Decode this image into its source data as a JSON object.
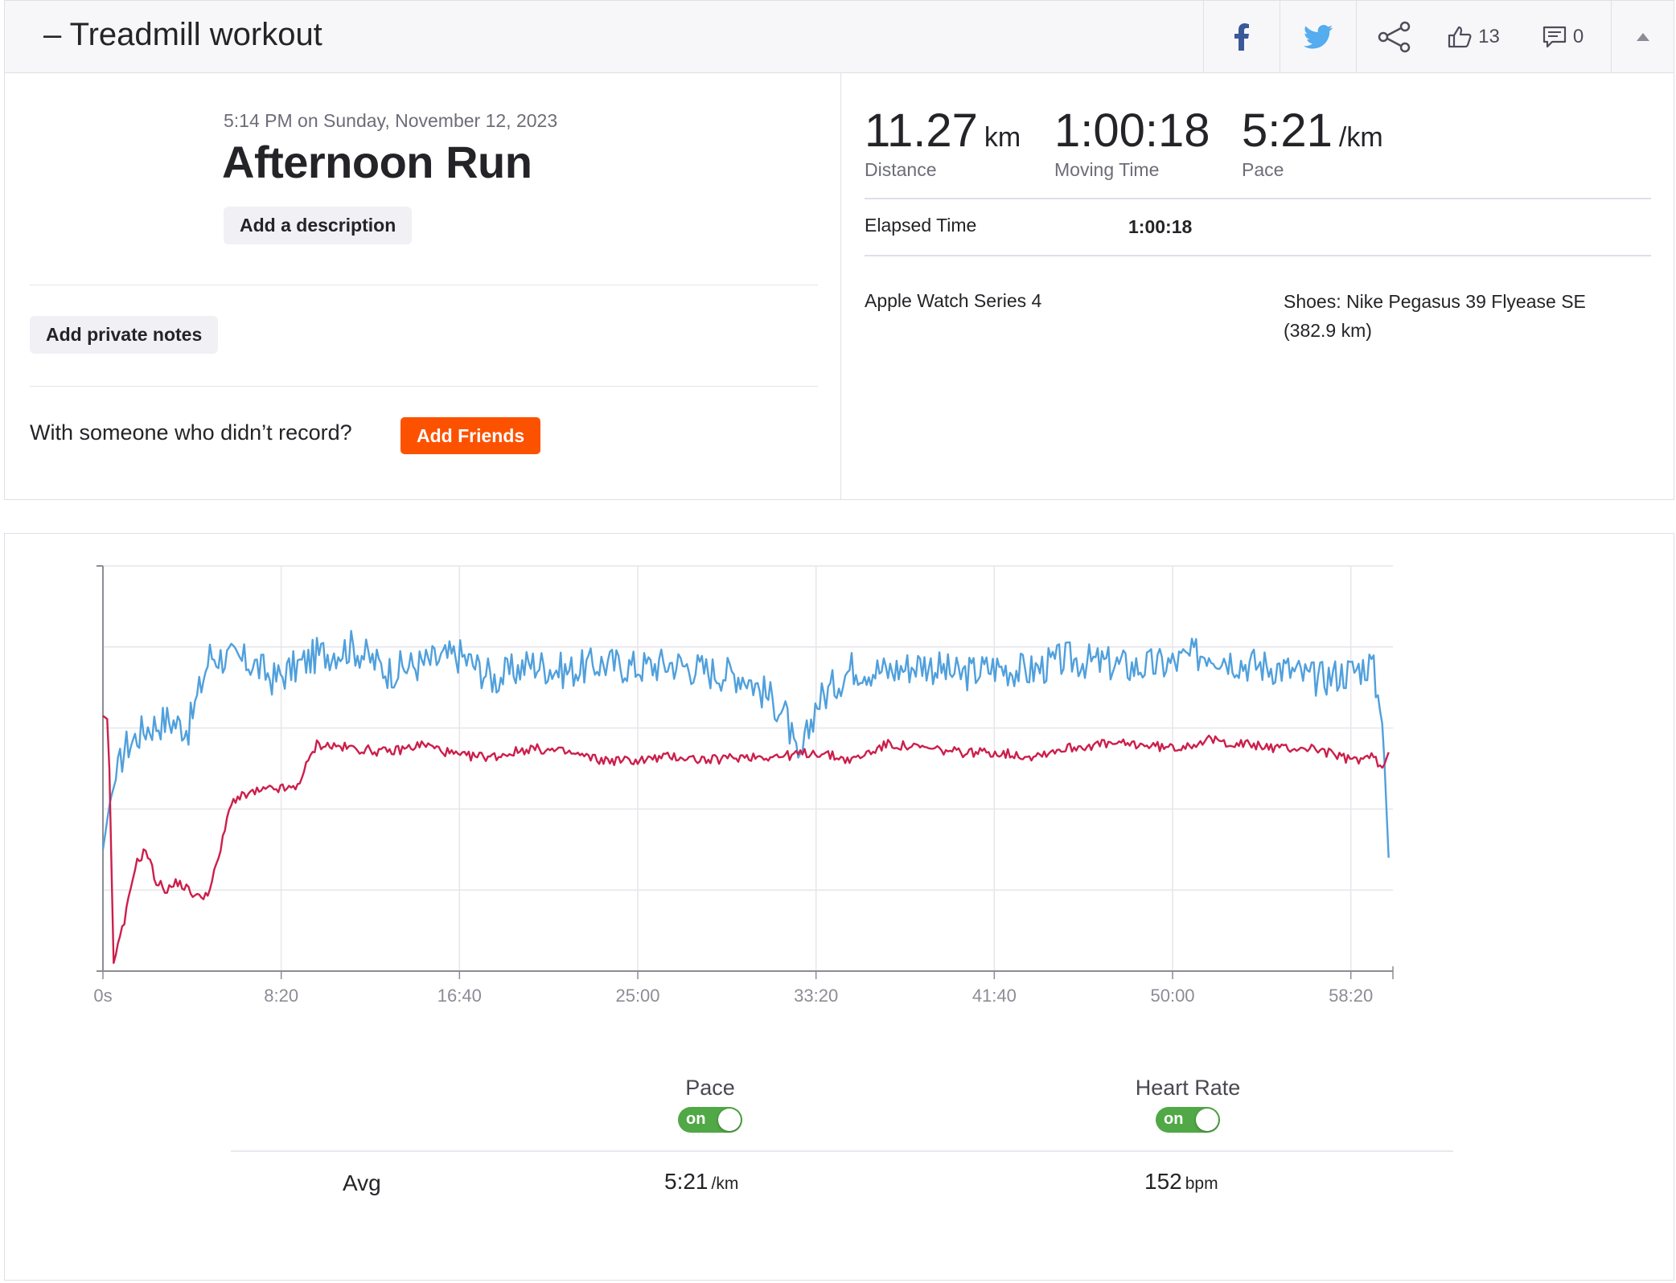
{
  "header": {
    "title": "– Treadmill workout",
    "kudos_count": "13",
    "comment_count": "0",
    "icons": [
      "facebook-icon",
      "twitter-icon",
      "share-icon",
      "thumbs-up-icon",
      "comment-icon",
      "caret-up-icon"
    ]
  },
  "activity": {
    "date": "5:14 PM on Sunday, November 12, 2023",
    "name": "Afternoon Run",
    "add_description_label": "Add a description",
    "add_private_notes_label": "Add private notes",
    "with_someone_text": "With someone who didn’t record?",
    "add_friends_label": "Add Friends"
  },
  "stats": {
    "distance": {
      "value": "11.27",
      "unit": "km",
      "label": "Distance"
    },
    "moving_time": {
      "value": "1:00:18",
      "label": "Moving Time"
    },
    "pace": {
      "value": "5:21",
      "unit": "/km",
      "label": "Pace"
    },
    "elapsed_time_label": "Elapsed Time",
    "elapsed_time_value": "1:00:18",
    "device": "Apple Watch Series 4",
    "shoes": "Shoes: Nike Pegasus 39 Flyease SE (382.9 km)"
  },
  "chart_data": {
    "type": "line",
    "x_tick_labels": [
      "0s",
      "8:20",
      "16:40",
      "25:00",
      "33:20",
      "41:40",
      "50:00",
      "58:20"
    ],
    "x_unit": "seconds",
    "x_range": [
      0,
      3618
    ],
    "grid": true,
    "series": [
      {
        "name": "Pace",
        "color": "#50a0dc",
        "x": [
          0,
          20,
          60,
          120,
          180,
          240,
          300,
          420,
          480,
          600,
          700,
          800,
          900,
          1000,
          1100,
          1200,
          1300,
          1400,
          1500,
          1600,
          1700,
          1800,
          1900,
          1920,
          1950,
          2000,
          2100,
          2200,
          2300,
          2400,
          2500,
          2600,
          2700,
          2800,
          2900,
          3000,
          3100,
          3200,
          3300,
          3400,
          3500,
          3560,
          3590,
          3610
        ],
        "values": [
          0.3,
          0.42,
          0.55,
          0.6,
          0.62,
          0.6,
          0.78,
          0.76,
          0.72,
          0.78,
          0.8,
          0.74,
          0.76,
          0.78,
          0.72,
          0.76,
          0.74,
          0.76,
          0.75,
          0.76,
          0.74,
          0.73,
          0.65,
          0.62,
          0.5,
          0.66,
          0.75,
          0.74,
          0.76,
          0.73,
          0.75,
          0.74,
          0.77,
          0.76,
          0.75,
          0.76,
          0.79,
          0.76,
          0.75,
          0.72,
          0.74,
          0.76,
          0.6,
          0.2
        ]
      },
      {
        "name": "Heart Rate",
        "color": "#cc1f4b",
        "x": [
          0,
          15,
          30,
          60,
          90,
          120,
          150,
          180,
          210,
          240,
          270,
          300,
          330,
          360,
          420,
          480,
          540,
          600,
          700,
          800,
          900,
          1000,
          1100,
          1200,
          1300,
          1400,
          1500,
          1600,
          1700,
          1800,
          1900,
          2000,
          2100,
          2200,
          2300,
          2400,
          2500,
          2600,
          2700,
          2800,
          2900,
          3000,
          3100,
          3200,
          3300,
          3400,
          3500,
          3560,
          3590,
          3610
        ],
        "values": [
          0.63,
          0.62,
          0.02,
          0.12,
          0.26,
          0.3,
          0.22,
          0.2,
          0.22,
          0.2,
          0.18,
          0.2,
          0.3,
          0.42,
          0.44,
          0.45,
          0.45,
          0.56,
          0.55,
          0.54,
          0.56,
          0.53,
          0.53,
          0.55,
          0.54,
          0.52,
          0.52,
          0.53,
          0.52,
          0.53,
          0.53,
          0.54,
          0.52,
          0.56,
          0.55,
          0.54,
          0.54,
          0.53,
          0.55,
          0.56,
          0.56,
          0.55,
          0.57,
          0.56,
          0.55,
          0.55,
          0.52,
          0.53,
          0.5,
          0.55
        ]
      }
    ],
    "legend": [
      {
        "label": "Pace",
        "toggle": "on",
        "color": "#51a846"
      },
      {
        "label": "Heart Rate",
        "toggle": "on",
        "color": "#51a846"
      }
    ]
  },
  "summary": {
    "avg_label": "Avg",
    "avg_pace_value": "5:21",
    "avg_pace_unit": "/km",
    "avg_hr_value": "152",
    "avg_hr_unit": "bpm"
  }
}
